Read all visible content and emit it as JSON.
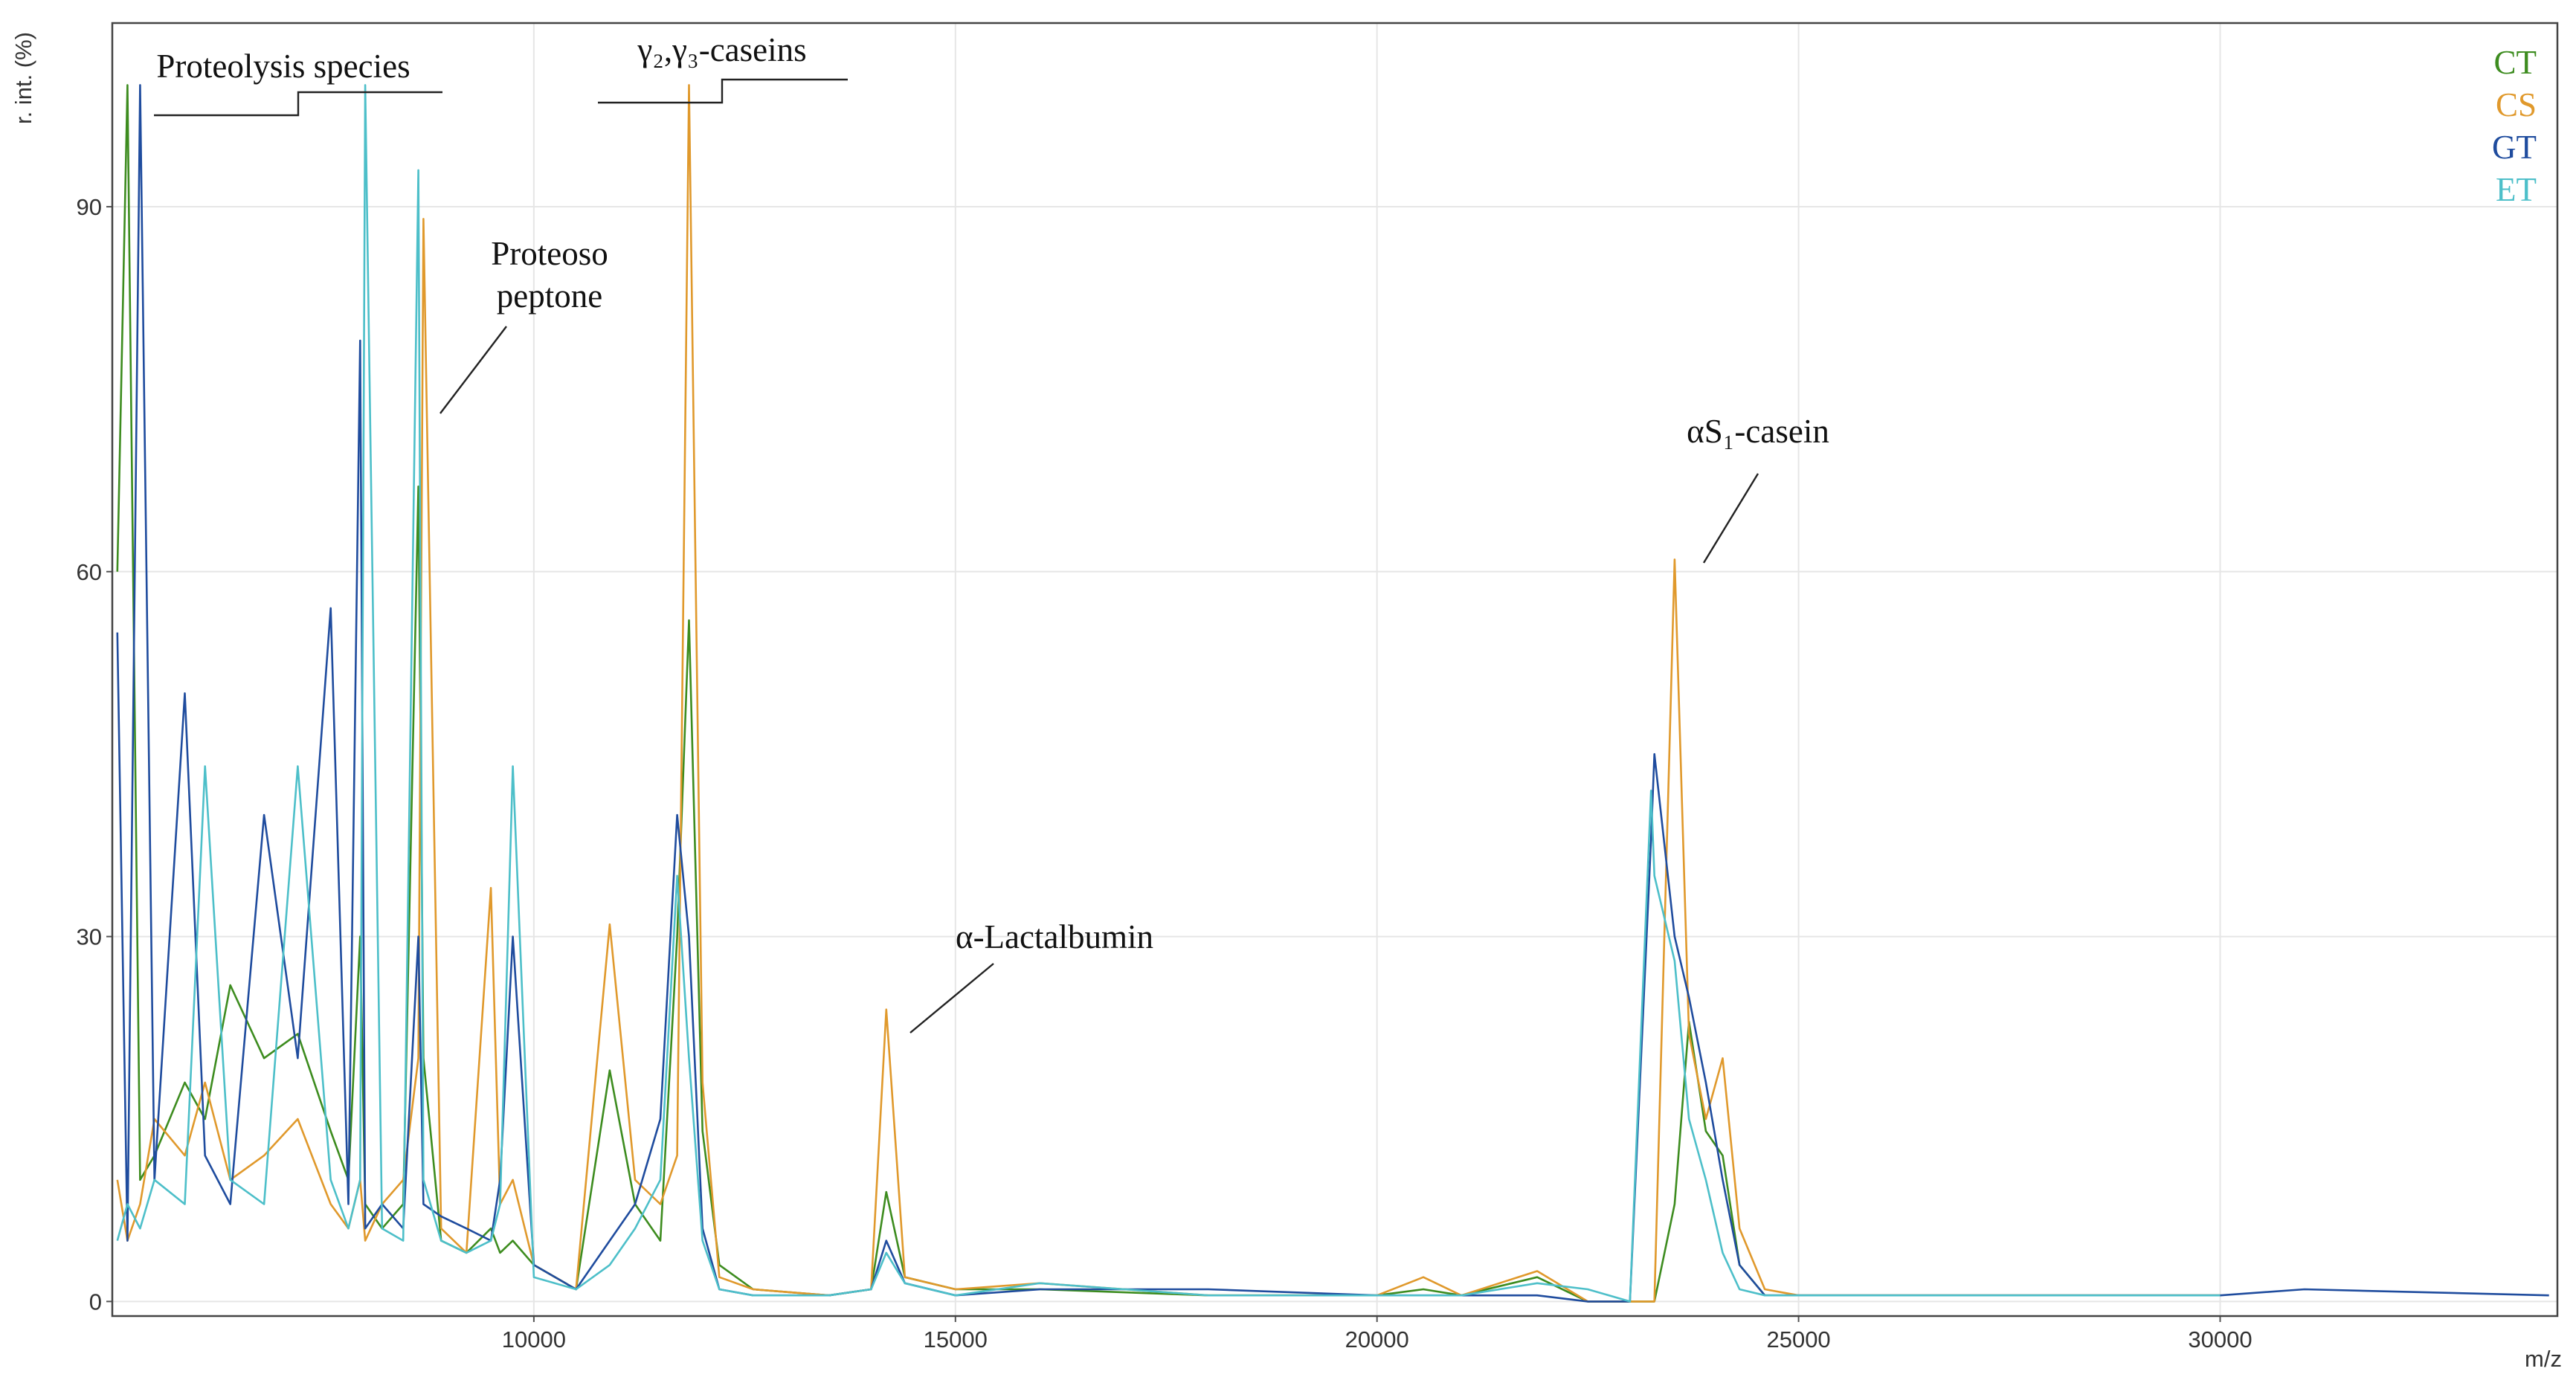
{
  "chart_data": {
    "type": "line",
    "x_label": "m/z",
    "y_label": "r. int. (%)",
    "xlim": [
      5000,
      34000
    ],
    "ylim": [
      -1.2,
      105.1
    ],
    "xticks": [
      10000,
      15000,
      20000,
      25000,
      30000
    ],
    "yticks": [
      0,
      30,
      60,
      90
    ],
    "grid": true,
    "legend": "top-right",
    "annotations": [
      [
        "Proteolysis species"
      ],
      [
        "γ₂,γ₃-caseins"
      ],
      [
        "Proteoso",
        "peptone"
      ],
      [
        "α-Lactalbumin"
      ],
      [
        "αS₁-casein"
      ]
    ],
    "x": [
      5060,
      5180,
      5330,
      5500,
      5860,
      6100,
      6400,
      6800,
      7200,
      7590,
      7800,
      7940,
      8000,
      8200,
      8450,
      8630,
      8690,
      8900,
      9200,
      9490,
      9600,
      9750,
      10000,
      10500,
      10900,
      11200,
      11500,
      11700,
      11840,
      12000,
      12200,
      12600,
      13500,
      14000,
      14180,
      14400,
      15000,
      16000,
      18000,
      20000,
      20550,
      21000,
      21900,
      22500,
      23000,
      23250,
      23290,
      23530,
      23700,
      23900,
      24100,
      24300,
      24600,
      25000,
      27000,
      30000,
      31000,
      33900
    ],
    "series": [
      {
        "name": "CT",
        "color": "#3d8c1f",
        "values": [
          60,
          100,
          10,
          12,
          18,
          15,
          26,
          20,
          22,
          14,
          10,
          30,
          8,
          6,
          8,
          67,
          20,
          5,
          4,
          6,
          4,
          5,
          3,
          1,
          19,
          8,
          5,
          30,
          56,
          14,
          3,
          1,
          0.5,
          1,
          9,
          2,
          1,
          1,
          0.5,
          0.5,
          1,
          0.5,
          2,
          0,
          0,
          0,
          0,
          8,
          23,
          14,
          12,
          3,
          0.5,
          0.5,
          0.5,
          0.5,
          null,
          null
        ]
      },
      {
        "name": "CS",
        "color": "#e0992c",
        "values": [
          10,
          5,
          8,
          15,
          12,
          18,
          10,
          12,
          15,
          8,
          6,
          10,
          5,
          8,
          10,
          20,
          89,
          6,
          4,
          34,
          8,
          10,
          3,
          1,
          31,
          10,
          8,
          12,
          100,
          18,
          2,
          1,
          0.5,
          1,
          24,
          2,
          1,
          1.5,
          0.5,
          0.5,
          2,
          0.5,
          2.5,
          0,
          0,
          0,
          0,
          61,
          22,
          15,
          20,
          6,
          1,
          0.5,
          0.5,
          0.5,
          null,
          null
        ]
      },
      {
        "name": "GT",
        "color": "#1f4c9e",
        "values": [
          55,
          5,
          100,
          10,
          50,
          12,
          8,
          40,
          20,
          57,
          8,
          79,
          6,
          8,
          6,
          30,
          8,
          7,
          6,
          5,
          10,
          30,
          3,
          1,
          5,
          8,
          15,
          40,
          30,
          6,
          1,
          0.5,
          0.5,
          1,
          5,
          1.5,
          0.5,
          1,
          1,
          0.5,
          0.5,
          0.5,
          0.5,
          0,
          0,
          38,
          45,
          30,
          25,
          18,
          10,
          3,
          0.5,
          0.5,
          0.5,
          0.5,
          1,
          0.5
        ]
      },
      {
        "name": "ET",
        "color": "#4dbfc9",
        "values": [
          5,
          8,
          6,
          10,
          8,
          44,
          10,
          8,
          44,
          10,
          6,
          10,
          100,
          6,
          5,
          93,
          10,
          5,
          4,
          5,
          8,
          44,
          2,
          1,
          3,
          6,
          10,
          35,
          20,
          5,
          1,
          0.5,
          0.5,
          1,
          4,
          1.5,
          0.5,
          1.5,
          0.5,
          0.5,
          0.5,
          0.5,
          1.5,
          1,
          0,
          42,
          35,
          28,
          15,
          10,
          4,
          1,
          0.5,
          0.5,
          0.5,
          0.5,
          null,
          null
        ]
      }
    ]
  }
}
